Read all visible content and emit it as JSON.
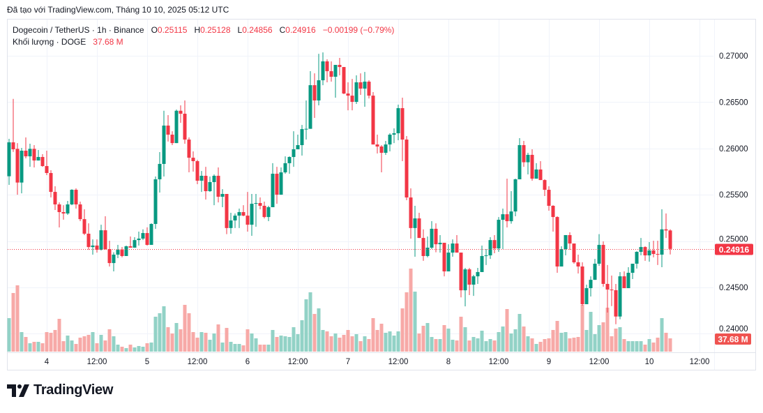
{
  "caption": "Đã tạo với TradingView.com, Tháng 10 10, 2025 05:12 UTC",
  "legend": {
    "symbol": "Dogecoin / TetherUS · 1h · Binance",
    "o_label": "O",
    "o_value": "0.25115",
    "h_label": "H",
    "h_value": "0.25128",
    "l_label": "L",
    "l_value": "0.24856",
    "c_label": "C",
    "c_value": "0.24916",
    "change": "−0.00199 (−0.79%)",
    "volume_label": "Khối lượng · DOGE",
    "volume_value": "37.68 M"
  },
  "brand": {
    "name": "TradingView"
  },
  "colors": {
    "up": "#089981",
    "down": "#f23645",
    "up_volume": "#92d2c6",
    "down_volume": "#f7a9a7",
    "grid": "#f0f3fa",
    "text": "#131722"
  },
  "chart_data": {
    "type": "candlestick",
    "symbol": "DOGE/USDT",
    "interval": "1h",
    "first_bar_time": "2025-10-03 15:00",
    "ylim": [
      0.2385,
      0.2735
    ],
    "y_ticks": [
      "0.27000",
      "0.26500",
      "0.26000",
      "0.25500",
      "0.25000",
      "0.24500",
      "0.24000"
    ],
    "x_ticks": [
      {
        "label": "4",
        "time": "2025-10-04 00:00"
      },
      {
        "label": "12:00",
        "time": "2025-10-04 12:00"
      },
      {
        "label": "5",
        "time": "2025-10-05 00:00"
      },
      {
        "label": "12:00",
        "time": "2025-10-05 12:00"
      },
      {
        "label": "6",
        "time": "2025-10-06 00:00"
      },
      {
        "label": "12:00",
        "time": "2025-10-06 12:00"
      },
      {
        "label": "7",
        "time": "2025-10-07 00:00"
      },
      {
        "label": "12:00",
        "time": "2025-10-07 12:00"
      },
      {
        "label": "8",
        "time": "2025-10-08 00:00"
      },
      {
        "label": "12:00",
        "time": "2025-10-08 12:00"
      },
      {
        "label": "9",
        "time": "2025-10-09 00:00"
      },
      {
        "label": "12:00",
        "time": "2025-10-09 12:00"
      },
      {
        "label": "10",
        "time": "2025-10-10 00:00"
      },
      {
        "label": "12:00",
        "time": "2025-10-10 12:00"
      }
    ],
    "last_price_label": "0.24916",
    "last_volume_label": "37.68 M",
    "volume_unit": "M",
    "bars_ohlcv": [
      [
        0.257,
        0.26104,
        0.25607,
        0.26066,
        95.2
      ],
      [
        0.26066,
        0.26535,
        0.25963,
        0.25991,
        166.6
      ],
      [
        0.25996,
        0.26058,
        0.25501,
        0.25632,
        188.4
      ],
      [
        0.25632,
        0.26006,
        0.25516,
        0.25976,
        55.5
      ],
      [
        0.25976,
        0.26119,
        0.25893,
        0.25915,
        41.6
      ],
      [
        0.25915,
        0.26051,
        0.25802,
        0.25996,
        23.8
      ],
      [
        0.25996,
        0.26036,
        0.25795,
        0.2587,
        27.8
      ],
      [
        0.2587,
        0.25983,
        0.2587,
        0.25908,
        27.8
      ],
      [
        0.25908,
        0.25938,
        0.25802,
        0.2581,
        23.8
      ],
      [
        0.2581,
        0.25976,
        0.25712,
        0.25735,
        55.5
      ],
      [
        0.25735,
        0.25765,
        0.25471,
        0.25531,
        53.5
      ],
      [
        0.25531,
        0.25592,
        0.25336,
        0.25396,
        61.5
      ],
      [
        0.25396,
        0.25418,
        0.25148,
        0.25313,
        93.2
      ],
      [
        0.25313,
        0.25388,
        0.25231,
        0.25298,
        29.7
      ],
      [
        0.25298,
        0.25434,
        0.25283,
        0.25396,
        45.6
      ],
      [
        0.25396,
        0.2556,
        0.25388,
        0.25554,
        31.7
      ],
      [
        0.25554,
        0.25569,
        0.25351,
        0.25396,
        21.8
      ],
      [
        0.25396,
        0.25426,
        0.25215,
        0.25237,
        39.7
      ],
      [
        0.25237,
        0.25343,
        0.25065,
        0.2508,
        43.6
      ],
      [
        0.2508,
        0.25192,
        0.24906,
        0.24936,
        47.6
      ],
      [
        0.24936,
        0.25019,
        0.24854,
        0.24952,
        55.5
      ],
      [
        0.24952,
        0.25019,
        0.24876,
        0.24906,
        23.8
      ],
      [
        0.24906,
        0.25177,
        0.24899,
        0.25117,
        47.6
      ],
      [
        0.25117,
        0.25268,
        0.24906,
        0.24914,
        31.7
      ],
      [
        0.24914,
        0.25004,
        0.24726,
        0.24763,
        63.5
      ],
      [
        0.24763,
        0.24879,
        0.24673,
        0.24854,
        43.6
      ],
      [
        0.24854,
        0.24959,
        0.24816,
        0.24906,
        19.8
      ],
      [
        0.24906,
        0.24936,
        0.24825,
        0.24839,
        13.9
      ],
      [
        0.24839,
        0.24952,
        0.24839,
        0.24944,
        9.9
      ],
      [
        0.24944,
        0.2505,
        0.24929,
        0.24929,
        19.8
      ],
      [
        0.24929,
        0.25042,
        0.24929,
        0.25011,
        11.9
      ],
      [
        0.25011,
        0.25102,
        0.24952,
        0.25027,
        15.9
      ],
      [
        0.25027,
        0.25127,
        0.25011,
        0.25087,
        13.9
      ],
      [
        0.25087,
        0.25149,
        0.24952,
        0.24959,
        23.8
      ],
      [
        0.24959,
        0.25192,
        0.24959,
        0.25185,
        25.8
      ],
      [
        0.25185,
        0.25697,
        0.25133,
        0.25667,
        99.2
      ],
      [
        0.25667,
        0.25961,
        0.25524,
        0.25833,
        109.1
      ],
      [
        0.25833,
        0.26407,
        0.25697,
        0.26247,
        128.9
      ],
      [
        0.26247,
        0.2636,
        0.26075,
        0.26149,
        69.4
      ],
      [
        0.26149,
        0.26186,
        0.26036,
        0.26058,
        51.6
      ],
      [
        0.26058,
        0.2642,
        0.26058,
        0.26407,
        81.3
      ],
      [
        0.26407,
        0.26465,
        0.26277,
        0.26375,
        63.5
      ],
      [
        0.26375,
        0.26518,
        0.26051,
        0.26096,
        132.9
      ],
      [
        0.26096,
        0.26119,
        0.25742,
        0.259,
        109.1
      ],
      [
        0.259,
        0.25968,
        0.2575,
        0.25863,
        55.5
      ],
      [
        0.25863,
        0.25877,
        0.25614,
        0.25652,
        39.7
      ],
      [
        0.25652,
        0.25757,
        0.25531,
        0.25705,
        55.5
      ],
      [
        0.25705,
        0.25802,
        0.25449,
        0.25539,
        53.5
      ],
      [
        0.25539,
        0.25697,
        0.25531,
        0.25637,
        33.7
      ],
      [
        0.25637,
        0.2572,
        0.25388,
        0.25705,
        51.6
      ],
      [
        0.25705,
        0.25795,
        0.25418,
        0.25479,
        77.3
      ],
      [
        0.25479,
        0.25561,
        0.25366,
        0.25509,
        25.8
      ],
      [
        0.25509,
        0.25509,
        0.25075,
        0.25141,
        67.4
      ],
      [
        0.25141,
        0.25306,
        0.2508,
        0.25223,
        27.8
      ],
      [
        0.25223,
        0.25298,
        0.25141,
        0.25275,
        21.8
      ],
      [
        0.25275,
        0.25351,
        0.25141,
        0.25313,
        21.8
      ],
      [
        0.25313,
        0.25388,
        0.25268,
        0.25275,
        17.8
      ],
      [
        0.25275,
        0.25531,
        0.25102,
        0.25177,
        63.5
      ],
      [
        0.25177,
        0.25509,
        0.25057,
        0.25403,
        51.6
      ],
      [
        0.25403,
        0.25509,
        0.25155,
        0.25411,
        37.7
      ],
      [
        0.25411,
        0.25471,
        0.25343,
        0.25381,
        19.8
      ],
      [
        0.25381,
        0.25426,
        0.25245,
        0.2526,
        19.8
      ],
      [
        0.2526,
        0.25381,
        0.25215,
        0.25366,
        19.8
      ],
      [
        0.25366,
        0.25841,
        0.25366,
        0.25727,
        61.5
      ],
      [
        0.25727,
        0.25802,
        0.25403,
        0.25501,
        41.6
      ],
      [
        0.25501,
        0.25795,
        0.25501,
        0.25742,
        45.6
      ],
      [
        0.25742,
        0.25915,
        0.25727,
        0.25841,
        43.6
      ],
      [
        0.25841,
        0.25915,
        0.25727,
        0.25908,
        41.6
      ],
      [
        0.25908,
        0.26186,
        0.25802,
        0.25991,
        69.4
      ],
      [
        0.25991,
        0.26149,
        0.25991,
        0.26036,
        49.6
      ],
      [
        0.26036,
        0.26254,
        0.25923,
        0.26209,
        89.2
      ],
      [
        0.26209,
        0.26518,
        0.26096,
        0.26212,
        148.7
      ],
      [
        0.26212,
        0.26834,
        0.26212,
        0.26683,
        168.6
      ],
      [
        0.26683,
        0.26811,
        0.2633,
        0.26518,
        107.1
      ],
      [
        0.26518,
        0.27022,
        0.26465,
        0.26736,
        122.9
      ],
      [
        0.26736,
        0.27037,
        0.26683,
        0.2694,
        61.5
      ],
      [
        0.2694,
        0.26962,
        0.26714,
        0.26834,
        57.5
      ],
      [
        0.26834,
        0.2694,
        0.26721,
        0.26774,
        43.6
      ],
      [
        0.26774,
        0.26902,
        0.26548,
        0.26902,
        51.6
      ],
      [
        0.26902,
        0.26977,
        0.26789,
        0.26879,
        39.7
      ],
      [
        0.26879,
        0.26879,
        0.26586,
        0.26593,
        47.6
      ],
      [
        0.26593,
        0.26714,
        0.26412,
        0.2657,
        61.5
      ],
      [
        0.2657,
        0.26751,
        0.26412,
        0.26503,
        43.6
      ],
      [
        0.26503,
        0.26789,
        0.2648,
        0.26714,
        49.6
      ],
      [
        0.26714,
        0.26811,
        0.26578,
        0.26646,
        29.7
      ],
      [
        0.26646,
        0.26826,
        0.2645,
        0.26721,
        43.6
      ],
      [
        0.26721,
        0.26736,
        0.2654,
        0.2657,
        35.7
      ],
      [
        0.2657,
        0.26608,
        0.26043,
        0.26043,
        95.2
      ],
      [
        0.26043,
        0.26149,
        0.25946,
        0.26021,
        61.5
      ],
      [
        0.26021,
        0.26036,
        0.25742,
        0.25953,
        79.3
      ],
      [
        0.25953,
        0.26081,
        0.25931,
        0.26043,
        53.5
      ],
      [
        0.26043,
        0.26164,
        0.25968,
        0.26149,
        57.5
      ],
      [
        0.26149,
        0.26217,
        0.26058,
        0.26164,
        45.6
      ],
      [
        0.26164,
        0.26473,
        0.26089,
        0.26435,
        57.5
      ],
      [
        0.26435,
        0.26548,
        0.25863,
        0.26096,
        122.9
      ],
      [
        0.26096,
        0.26134,
        0.25441,
        0.25471,
        168.6
      ],
      [
        0.25471,
        0.25569,
        0.25027,
        0.25141,
        236.0
      ],
      [
        0.25141,
        0.25381,
        0.24831,
        0.25245,
        170.5
      ],
      [
        0.25245,
        0.25306,
        0.25034,
        0.25034,
        51.6
      ],
      [
        0.25034,
        0.25127,
        0.24787,
        0.24839,
        73.4
      ],
      [
        0.24839,
        0.2505,
        0.24825,
        0.24929,
        81.3
      ],
      [
        0.24929,
        0.25215,
        0.24914,
        0.25133,
        41.6
      ],
      [
        0.25133,
        0.25192,
        0.24879,
        0.24966,
        35.7
      ],
      [
        0.24966,
        0.25065,
        0.24876,
        0.24982,
        35.7
      ],
      [
        0.24982,
        0.24982,
        0.2462,
        0.24673,
        75.4
      ],
      [
        0.24673,
        0.24966,
        0.24673,
        0.24876,
        65.4
      ],
      [
        0.24876,
        0.25019,
        0.24831,
        0.24974,
        33.7
      ],
      [
        0.24974,
        0.25065,
        0.24876,
        0.24876,
        31.7
      ],
      [
        0.24876,
        0.24876,
        0.24393,
        0.24469,
        99.2
      ],
      [
        0.24469,
        0.24711,
        0.24296,
        0.24695,
        69.4
      ],
      [
        0.24695,
        0.24711,
        0.24417,
        0.2453,
        31.7
      ],
      [
        0.2453,
        0.24636,
        0.24409,
        0.2462,
        41.6
      ],
      [
        0.2462,
        0.24711,
        0.24538,
        0.24666,
        37.7
      ],
      [
        0.24666,
        0.24952,
        0.24666,
        0.24839,
        59.5
      ],
      [
        0.24839,
        0.24914,
        0.24742,
        0.24846,
        29.7
      ],
      [
        0.24846,
        0.25042,
        0.24808,
        0.25011,
        35.7
      ],
      [
        0.25011,
        0.25065,
        0.24869,
        0.24921,
        31.7
      ],
      [
        0.24921,
        0.2526,
        0.24884,
        0.2523,
        55.5
      ],
      [
        0.2523,
        0.25351,
        0.24914,
        0.2529,
        71.4
      ],
      [
        0.2529,
        0.25674,
        0.25148,
        0.25215,
        121.0
      ],
      [
        0.25215,
        0.25539,
        0.25188,
        0.2532,
        51.6
      ],
      [
        0.2532,
        0.25674,
        0.25268,
        0.25667,
        63.5
      ],
      [
        0.25667,
        0.26111,
        0.25667,
        0.26036,
        107.1
      ],
      [
        0.26036,
        0.26081,
        0.25802,
        0.25851,
        71.4
      ],
      [
        0.25851,
        0.25953,
        0.2572,
        0.25931,
        43.6
      ],
      [
        0.25931,
        0.25991,
        0.25652,
        0.25674,
        37.7
      ],
      [
        0.25674,
        0.25841,
        0.25674,
        0.25773,
        21.8
      ],
      [
        0.25773,
        0.25863,
        0.25659,
        0.25659,
        27.8
      ],
      [
        0.25659,
        0.25667,
        0.25486,
        0.25554,
        35.7
      ],
      [
        0.25554,
        0.25592,
        0.25328,
        0.25381,
        37.7
      ],
      [
        0.25381,
        0.25388,
        0.25102,
        0.2526,
        61.5
      ],
      [
        0.2526,
        0.25268,
        0.24658,
        0.24726,
        87.3
      ],
      [
        0.24726,
        0.24944,
        0.24726,
        0.24914,
        53.5
      ],
      [
        0.24914,
        0.25065,
        0.24846,
        0.25065,
        55.5
      ],
      [
        0.25065,
        0.25095,
        0.24906,
        0.24974,
        37.7
      ],
      [
        0.24974,
        0.24974,
        0.24756,
        0.24771,
        39.7
      ],
      [
        0.24771,
        0.24854,
        0.24651,
        0.24726,
        41.6
      ],
      [
        0.24726,
        0.24771,
        0.24304,
        0.24319,
        132.9
      ],
      [
        0.24319,
        0.2453,
        0.24319,
        0.24492,
        61.5
      ],
      [
        0.24492,
        0.2462,
        0.24402,
        0.24582,
        113.0
      ],
      [
        0.24582,
        0.24808,
        0.24582,
        0.24756,
        49.6
      ],
      [
        0.24756,
        0.25075,
        0.24733,
        0.24959,
        75.4
      ],
      [
        0.24959,
        0.24997,
        0.24508,
        0.24538,
        83.3
      ],
      [
        0.24538,
        0.24742,
        0.24229,
        0.24477,
        124.9
      ],
      [
        0.24477,
        0.24628,
        0.24299,
        0.2447,
        43.6
      ],
      [
        0.2447,
        0.24538,
        0.24103,
        0.24186,
        65.4
      ],
      [
        0.24186,
        0.24666,
        0.24156,
        0.2462,
        69.4
      ],
      [
        0.2462,
        0.24673,
        0.24492,
        0.24492,
        35.7
      ],
      [
        0.24492,
        0.24718,
        0.24492,
        0.24658,
        29.7
      ],
      [
        0.24658,
        0.24756,
        0.2459,
        0.24756,
        29.7
      ],
      [
        0.24756,
        0.24891,
        0.24703,
        0.24884,
        29.7
      ],
      [
        0.24884,
        0.25034,
        0.24846,
        0.24936,
        29.7
      ],
      [
        0.24936,
        0.24944,
        0.24787,
        0.24846,
        19.8
      ],
      [
        0.24846,
        0.24989,
        0.24778,
        0.24899,
        35.7
      ],
      [
        0.24899,
        0.25004,
        0.24825,
        0.24861,
        25.8
      ],
      [
        0.24861,
        0.25004,
        0.24742,
        0.24854,
        39.7
      ],
      [
        0.24854,
        0.25343,
        0.24718,
        0.25127,
        95.2
      ],
      [
        0.25127,
        0.25298,
        0.25034,
        0.25115,
        53.5
      ],
      [
        0.25115,
        0.25128,
        0.24856,
        0.24916,
        37.68
      ]
    ]
  }
}
